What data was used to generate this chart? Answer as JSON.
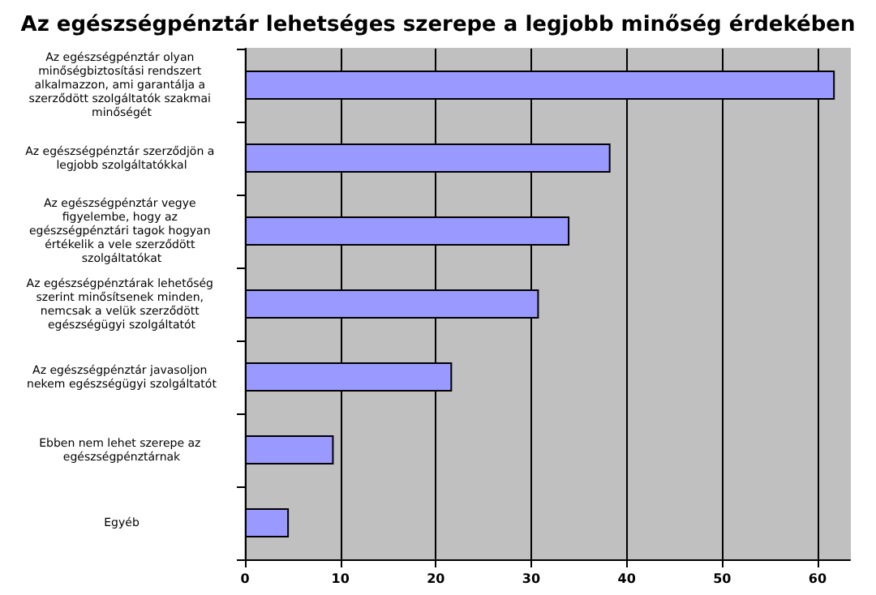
{
  "chart_data": {
    "type": "bar",
    "orientation": "horizontal",
    "title": "Az egészségpénztár lehetséges szerepe a legjobb minőség érdekében",
    "categories": [
      "Az egészségpénztár olyan minőségbiztosítási rendszert alkalmazzon, ami garantálja a szerződött szolgáltatók szakmai minőségét",
      "Az egészségpénztár szerződjön a legjobb szolgáltatókkal",
      "Az egészségpénztár vegye figyelembe, hogy az egészségpénztári tagok hogyan értékelik a vele szerződött szolgáltatókat",
      "Az egészségpénztárak lehetőség szerint minősítsenek minden, nemcsak a velük szerződött egészségügyi szolgáltatót",
      "Az egészségpénztár javasoljon nekem egészségügyi szolgáltatót",
      "Ebben nem lehet szerepe az egészségpénztárnak",
      "Egyéb"
    ],
    "values": [
      61.8,
      38.3,
      34.0,
      30.8,
      21.7,
      9.3,
      4.6
    ],
    "color": "#9999ff",
    "xlim": [
      0,
      63.4
    ],
    "xticks": [
      0,
      10,
      20,
      30,
      40,
      50,
      60
    ],
    "grid": "x"
  }
}
